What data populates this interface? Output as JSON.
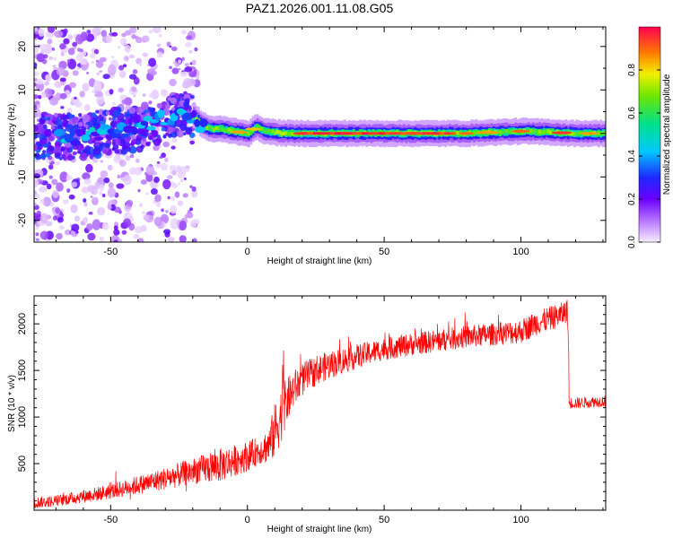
{
  "chart_data": [
    {
      "type": "heatmap",
      "title": "PAZ1.2026.001.11.08.G05",
      "xlabel": "Height of straight line (km)",
      "ylabel": "Frequency (Hz)",
      "xlim": [
        -78,
        131
      ],
      "ylim": [
        -25,
        24.5
      ],
      "xticks": [
        -50,
        0,
        50,
        100
      ],
      "yticks": [
        -20,
        -10,
        0,
        10,
        20
      ],
      "colorbar": {
        "label": "Normalized spectral amplitude",
        "range": [
          0,
          1
        ],
        "ticks": [
          "0.0",
          "0.2",
          "0.4",
          "0.6",
          "0.8"
        ]
      },
      "ridge_track": {
        "height_km": [
          -75,
          -65,
          -55,
          -45,
          -38,
          -32,
          -28,
          -24,
          -20,
          -17,
          -14,
          -10,
          -5,
          0,
          3,
          6,
          10,
          15,
          20,
          30,
          50,
          80,
          100,
          110,
          120,
          130
        ],
        "frequency_hz": [
          -0.5,
          -1.0,
          0.0,
          0.5,
          1.5,
          3.0,
          4.0,
          4.5,
          4.0,
          2.0,
          1.0,
          1.0,
          0.5,
          0.0,
          1.5,
          0.5,
          0.2,
          0.0,
          0.0,
          0.0,
          0.0,
          0.0,
          0.5,
          0.3,
          0.0,
          0.0
        ]
      }
    },
    {
      "type": "line",
      "title": "",
      "xlabel": "Height of straight line (km)",
      "ylabel": "SNR (10 * v/v)",
      "xlim": [
        -78,
        131
      ],
      "ylim": [
        0,
        2300
      ],
      "xticks": [
        -50,
        0,
        50,
        100
      ],
      "yticks": [
        500,
        1000,
        1500,
        2000
      ],
      "color": "#ff0000",
      "series": [
        {
          "name": "SNR",
          "x": [
            -78,
            -70,
            -60,
            -50,
            -40,
            -30,
            -20,
            -15,
            -10,
            -5,
            0,
            5,
            8,
            10,
            12,
            14,
            17,
            20,
            25,
            30,
            40,
            50,
            60,
            70,
            80,
            90,
            100,
            105,
            110,
            115,
            117,
            118,
            120,
            125,
            131
          ],
          "y": [
            80,
            100,
            150,
            200,
            270,
            340,
            420,
            450,
            480,
            530,
            580,
            650,
            700,
            850,
            1000,
            1150,
            1300,
            1400,
            1500,
            1560,
            1650,
            1730,
            1780,
            1820,
            1860,
            1890,
            1920,
            2000,
            2050,
            2100,
            2150,
            1150,
            1150,
            1160,
            1170
          ],
          "noise_amplitude": [
            60,
            60,
            70,
            80,
            100,
            120,
            140,
            160,
            180,
            170,
            160,
            150,
            200,
            300,
            300,
            250,
            200,
            180,
            160,
            150,
            130,
            120,
            120,
            120,
            120,
            120,
            130,
            130,
            130,
            130,
            120,
            60,
            60,
            60,
            60
          ]
        }
      ]
    }
  ]
}
